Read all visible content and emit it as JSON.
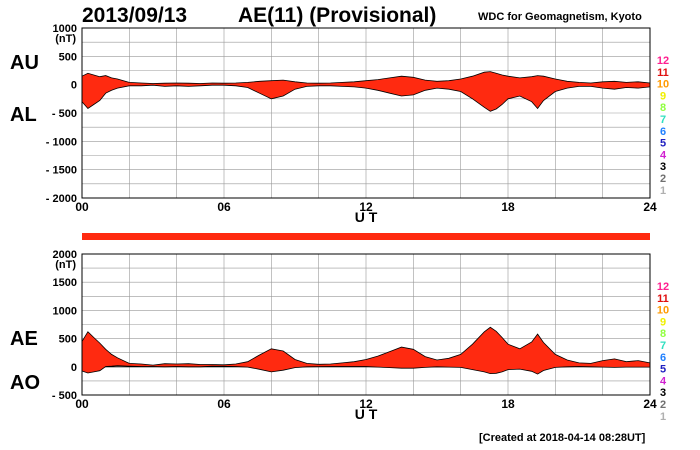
{
  "header": {
    "date": "2013/09/13",
    "index_title": "AE(11) (Provisional)",
    "source": "WDC for Geomagnetism, Kyoto",
    "created": "[Created at 2018-04-14 08:28UT]"
  },
  "panel_labels": {
    "au": "AU",
    "al": "AL",
    "ae": "AE",
    "ao": "AO"
  },
  "colors": {
    "fill": "#ff2a10",
    "outline": "#000000",
    "grid": "#999999",
    "bar": "#ff2a10"
  },
  "station_scale": {
    "labels": [
      "12",
      "11",
      "10",
      "9",
      "8",
      "7",
      "6",
      "5",
      "4",
      "3",
      "2",
      "1"
    ],
    "colors": [
      "#ff2090",
      "#e01010",
      "#ff9a00",
      "#f0f000",
      "#90ff40",
      "#30e0c0",
      "#2080ff",
      "#2020c0",
      "#d020d0",
      "#000000",
      "#707070",
      "#b0b0b0"
    ]
  },
  "chart_data": [
    {
      "type": "area",
      "title": "AU / AL",
      "xlabel": "U T",
      "ylabel": "(nT)",
      "xlim": [
        0,
        24
      ],
      "ylim": [
        -2000,
        1000
      ],
      "x_ticks": [
        "00",
        "06",
        "12",
        "18",
        "24"
      ],
      "y_ticks": [
        "1000",
        "500",
        "0",
        "- 500",
        "- 1000",
        "- 1500",
        "- 2000"
      ],
      "grid": true,
      "series": [
        {
          "name": "AU",
          "x": [
            0,
            0.25,
            0.5,
            0.75,
            1,
            1.25,
            1.5,
            2,
            2.5,
            3,
            3.5,
            4,
            4.5,
            5,
            5.5,
            6,
            6.5,
            7,
            7.5,
            8,
            8.5,
            9,
            9.5,
            10,
            10.5,
            11,
            11.5,
            12,
            12.5,
            13,
            13.5,
            14,
            14.5,
            15,
            15.5,
            16,
            16.5,
            17,
            17.25,
            17.5,
            17.75,
            18,
            18.5,
            19,
            19.25,
            19.5,
            20,
            20.5,
            21,
            21.5,
            22,
            22.5,
            23,
            23.5,
            24
          ],
          "values": [
            150,
            200,
            170,
            140,
            160,
            120,
            100,
            40,
            30,
            20,
            25,
            30,
            25,
            20,
            30,
            25,
            30,
            40,
            60,
            70,
            80,
            50,
            30,
            25,
            30,
            40,
            50,
            70,
            90,
            120,
            150,
            130,
            80,
            60,
            70,
            100,
            150,
            220,
            230,
            200,
            170,
            150,
            120,
            140,
            160,
            150,
            100,
            60,
            40,
            30,
            50,
            60,
            40,
            50,
            30
          ]
        },
        {
          "name": "AL",
          "x": [
            0,
            0.25,
            0.5,
            0.75,
            1,
            1.25,
            1.5,
            2,
            2.5,
            3,
            3.5,
            4,
            4.5,
            5,
            5.5,
            6,
            6.5,
            7,
            7.5,
            8,
            8.5,
            9,
            9.5,
            10,
            10.5,
            11,
            11.5,
            12,
            12.5,
            13,
            13.5,
            14,
            14.5,
            15,
            15.5,
            16,
            16.5,
            17,
            17.25,
            17.5,
            17.75,
            18,
            18.5,
            19,
            19.25,
            19.5,
            20,
            20.5,
            21,
            21.5,
            22,
            22.5,
            23,
            23.5,
            24
          ],
          "values": [
            -300,
            -420,
            -350,
            -280,
            -150,
            -100,
            -60,
            -20,
            -20,
            -10,
            -30,
            -20,
            -30,
            -20,
            -10,
            -10,
            -20,
            -50,
            -150,
            -250,
            -200,
            -80,
            -30,
            -20,
            -20,
            -30,
            -40,
            -60,
            -100,
            -150,
            -200,
            -180,
            -100,
            -60,
            -80,
            -120,
            -250,
            -400,
            -470,
            -430,
            -350,
            -250,
            -200,
            -300,
            -420,
            -280,
            -120,
            -60,
            -30,
            -30,
            -60,
            -80,
            -50,
            -60,
            -40
          ]
        }
      ]
    },
    {
      "type": "area",
      "title": "AE / AO",
      "xlabel": "U T",
      "ylabel": "(nT)",
      "xlim": [
        0,
        24
      ],
      "ylim": [
        -500,
        2000
      ],
      "x_ticks": [
        "00",
        "06",
        "12",
        "18",
        "24"
      ],
      "y_ticks": [
        "2000",
        "1500",
        "1000",
        "500",
        "0",
        "- 500"
      ],
      "grid": true,
      "series": [
        {
          "name": "AE",
          "x": [
            0,
            0.25,
            0.5,
            0.75,
            1,
            1.25,
            1.5,
            2,
            2.5,
            3,
            3.5,
            4,
            4.5,
            5,
            5.5,
            6,
            6.5,
            7,
            7.5,
            8,
            8.5,
            9,
            9.5,
            10,
            10.5,
            11,
            11.5,
            12,
            12.5,
            13,
            13.5,
            14,
            14.5,
            15,
            15.5,
            16,
            16.5,
            17,
            17.25,
            17.5,
            17.75,
            18,
            18.5,
            19,
            19.25,
            19.5,
            20,
            20.5,
            21,
            21.5,
            22,
            22.5,
            23,
            23.5,
            24
          ],
          "values": [
            450,
            620,
            520,
            420,
            310,
            220,
            160,
            60,
            50,
            30,
            55,
            50,
            55,
            40,
            40,
            35,
            50,
            90,
            210,
            320,
            280,
            130,
            60,
            45,
            50,
            70,
            90,
            130,
            190,
            270,
            350,
            310,
            180,
            120,
            150,
            220,
            400,
            620,
            700,
            630,
            520,
            400,
            320,
            440,
            580,
            430,
            220,
            120,
            70,
            60,
            110,
            140,
            90,
            110,
            70
          ]
        },
        {
          "name": "AO",
          "x": [
            0,
            0.25,
            0.5,
            0.75,
            1,
            1.25,
            1.5,
            2,
            2.5,
            3,
            3.5,
            4,
            4.5,
            5,
            5.5,
            6,
            6.5,
            7,
            7.5,
            8,
            8.5,
            9,
            9.5,
            10,
            10.5,
            11,
            11.5,
            12,
            12.5,
            13,
            13.5,
            14,
            14.5,
            15,
            15.5,
            16,
            16.5,
            17,
            17.25,
            17.5,
            17.75,
            18,
            18.5,
            19,
            19.25,
            19.5,
            20,
            20.5,
            21,
            21.5,
            22,
            22.5,
            23,
            23.5,
            24
          ],
          "values": [
            -75,
            -110,
            -90,
            -70,
            5,
            10,
            20,
            10,
            5,
            5,
            0,
            5,
            0,
            0,
            10,
            8,
            5,
            -5,
            -45,
            -90,
            -60,
            -15,
            0,
            3,
            5,
            5,
            5,
            5,
            -5,
            -15,
            -25,
            -25,
            -10,
            0,
            -5,
            -10,
            -50,
            -90,
            -120,
            -115,
            -90,
            -50,
            -40,
            -80,
            -130,
            -65,
            -10,
            0,
            5,
            0,
            -5,
            -10,
            -5,
            -5,
            -5
          ]
        }
      ]
    }
  ]
}
